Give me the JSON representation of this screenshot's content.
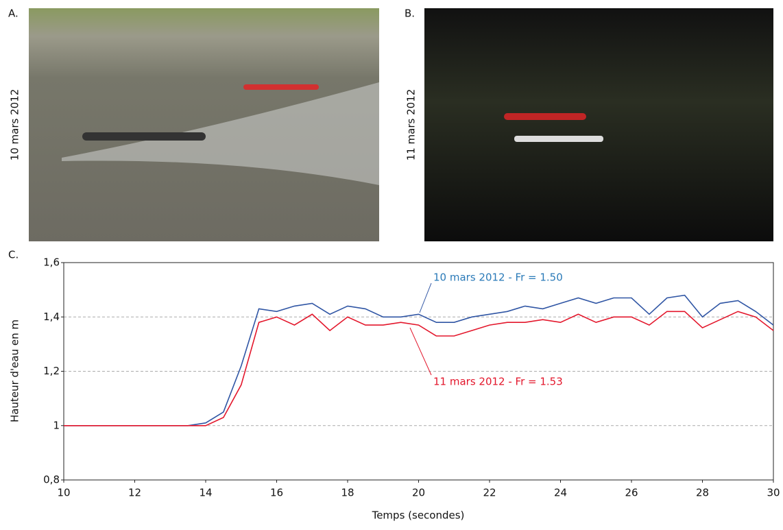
{
  "panels": [
    {
      "label": "A.",
      "caption": "10 mars 2012"
    },
    {
      "label": "B.",
      "caption": "11 mars 2012"
    }
  ],
  "chart_data": {
    "type": "line",
    "panel_label": "C.",
    "xlabel": "Temps (secondes)",
    "ylabel": "Hauteur d'eau en m",
    "x": [
      10,
      10.5,
      11,
      11.5,
      12,
      12.5,
      13,
      13.5,
      14,
      14.5,
      15,
      15.5,
      16,
      16.5,
      17,
      17.5,
      18,
      18.5,
      19,
      19.5,
      20,
      20.5,
      21,
      21.5,
      22,
      22.5,
      23,
      23.5,
      24,
      24.5,
      25,
      25.5,
      26,
      26.5,
      27,
      27.5,
      28,
      28.5,
      29,
      29.5,
      30
    ],
    "series": [
      {
        "name": "10 mars 2012 - Fr = 1.50",
        "color": "#2f55a4",
        "values": [
          1.0,
          1.0,
          1.0,
          1.0,
          1.0,
          1.0,
          1.0,
          1.0,
          1.01,
          1.05,
          1.22,
          1.43,
          1.42,
          1.44,
          1.45,
          1.41,
          1.44,
          1.43,
          1.4,
          1.4,
          1.41,
          1.38,
          1.38,
          1.4,
          1.41,
          1.42,
          1.44,
          1.43,
          1.45,
          1.47,
          1.45,
          1.47,
          1.47,
          1.41,
          1.47,
          1.48,
          1.4,
          1.45,
          1.46,
          1.42,
          1.37
        ]
      },
      {
        "name": "11 mars 2012 - Fr = 1.53",
        "color": "#e3162b",
        "values": [
          1.0,
          1.0,
          1.0,
          1.0,
          1.0,
          1.0,
          1.0,
          1.0,
          1.0,
          1.03,
          1.15,
          1.38,
          1.4,
          1.37,
          1.41,
          1.35,
          1.4,
          1.37,
          1.37,
          1.38,
          1.37,
          1.33,
          1.33,
          1.35,
          1.37,
          1.38,
          1.38,
          1.39,
          1.38,
          1.41,
          1.38,
          1.4,
          1.4,
          1.37,
          1.42,
          1.42,
          1.36,
          1.39,
          1.42,
          1.4,
          1.35
        ]
      }
    ],
    "xlim": [
      10,
      30
    ],
    "xticks": [
      10,
      12,
      14,
      16,
      18,
      20,
      22,
      24,
      26,
      28,
      30
    ],
    "ylim": [
      0.8,
      1.6
    ],
    "yticks": [
      {
        "value": 0.8,
        "label": "0,8"
      },
      1,
      {
        "value": 1.2,
        "label": "1,2"
      },
      {
        "value": 1.4,
        "label": "1,4"
      },
      {
        "value": 1.6,
        "label": "1,6"
      }
    ],
    "grid": true
  }
}
